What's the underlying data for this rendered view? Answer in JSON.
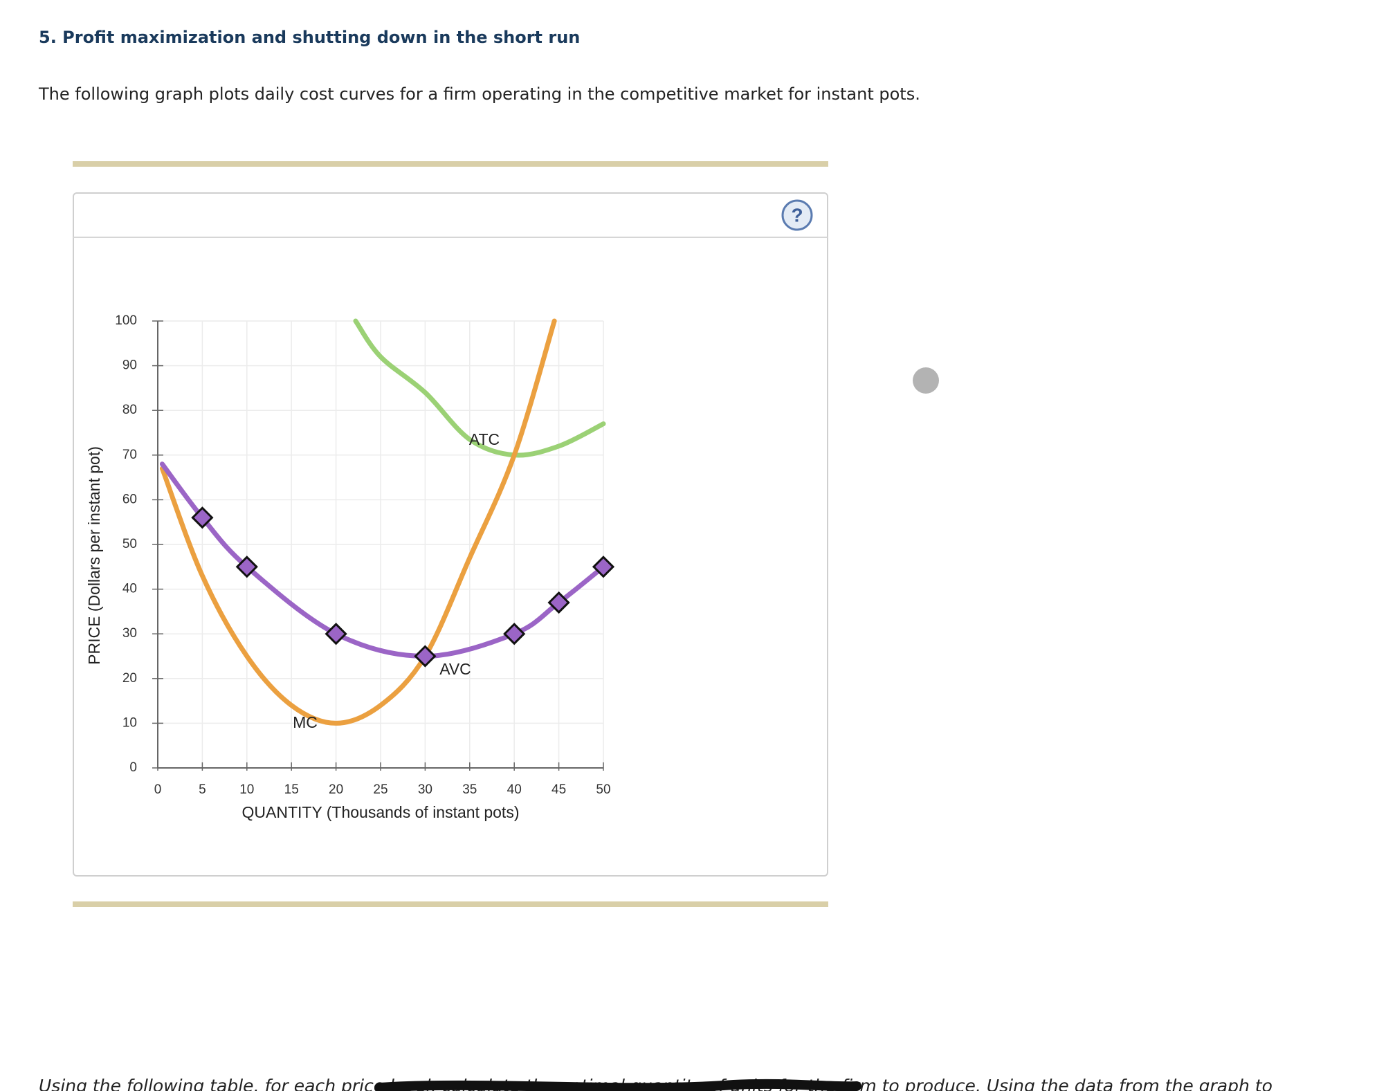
{
  "header": {
    "title": "5. Profit maximization and shutting down in the short run",
    "intro": "The following graph plots daily cost curves for a firm operating in the competitive market for instant pots."
  },
  "help_icon": "?",
  "footer": "Using the following table, for each price level, calculate the optimal quantity of units for the firm to produce. Using the data from the graph to",
  "chart_data": {
    "type": "line",
    "xlabel": "QUANTITY (Thousands of instant pots)",
    "ylabel": "PRICE (Dollars per instant pot)",
    "xlim": [
      0,
      50
    ],
    "ylim": [
      0,
      100
    ],
    "xticks": [
      0,
      5,
      10,
      15,
      20,
      25,
      30,
      35,
      40,
      45,
      50
    ],
    "yticks": [
      0,
      10,
      20,
      30,
      40,
      50,
      60,
      70,
      80,
      90,
      100
    ],
    "grid": true,
    "series": [
      {
        "name": "ATC",
        "color": "#9bd175",
        "markers": false,
        "x": [
          22.2,
          25,
          30,
          35,
          40,
          45,
          50
        ],
        "values": [
          100,
          92,
          84,
          73.5,
          70,
          72,
          77
        ]
      },
      {
        "name": "MC",
        "color": "#eba040",
        "markers": false,
        "x": [
          0.5,
          5,
          10,
          15,
          20,
          25,
          30,
          35,
          40,
          44.5
        ],
        "values": [
          67,
          43,
          25,
          14,
          10,
          14,
          25,
          47,
          70,
          100
        ]
      },
      {
        "name": "AVC",
        "color": "#9b65c6",
        "markers": false,
        "x": [
          0.5,
          5,
          10,
          20,
          30,
          40,
          45,
          50
        ],
        "values": [
          68,
          56,
          45,
          30,
          25,
          30,
          37,
          45
        ]
      },
      {
        "color": "#9b65c6",
        "markers": true,
        "x": [
          5,
          10,
          20,
          30,
          40,
          45,
          50
        ],
        "values": [
          56,
          45,
          30,
          25,
          30,
          37,
          45
        ]
      }
    ]
  }
}
